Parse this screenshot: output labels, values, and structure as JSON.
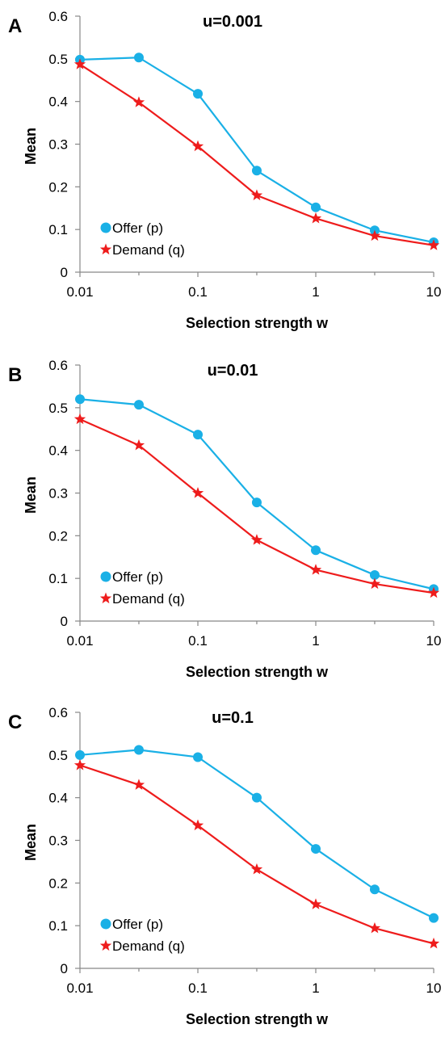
{
  "chart_data": [
    {
      "type": "line",
      "panel_letter": "A",
      "title": "u=0.001",
      "xlabel": "Selection strength w",
      "ylabel": "Mean",
      "x_scale": "log",
      "x": [
        0.01,
        0.0316,
        0.1,
        0.316,
        1,
        3.16,
        10
      ],
      "xticks": [
        "0.01",
        "0.1",
        "1",
        "10"
      ],
      "yticks": [
        "0",
        "0.1",
        "0.2",
        "0.3",
        "0.4",
        "0.5",
        "0.6"
      ],
      "ylim": [
        0,
        0.6
      ],
      "legend_position": "bottom-left",
      "series": [
        {
          "name": "Offer (p)",
          "color": "#1ab0e6",
          "marker": "circle",
          "values": [
            0.498,
            0.503,
            0.418,
            0.238,
            0.152,
            0.098,
            0.07
          ]
        },
        {
          "name": "Demand (q)",
          "color": "#ee1c1c",
          "marker": "star",
          "values": [
            0.487,
            0.398,
            0.295,
            0.18,
            0.126,
            0.085,
            0.063
          ]
        }
      ]
    },
    {
      "type": "line",
      "panel_letter": "B",
      "title": "u=0.01",
      "xlabel": "Selection strength w",
      "ylabel": "Mean",
      "x_scale": "log",
      "x": [
        0.01,
        0.0316,
        0.1,
        0.316,
        1,
        3.16,
        10
      ],
      "xticks": [
        "0.01",
        "0.1",
        "1",
        "10"
      ],
      "yticks": [
        "0",
        "0.1",
        "0.2",
        "0.3",
        "0.4",
        "0.5",
        "0.6"
      ],
      "ylim": [
        0,
        0.6
      ],
      "legend_position": "bottom-left",
      "series": [
        {
          "name": "Offer (p)",
          "color": "#1ab0e6",
          "marker": "circle",
          "values": [
            0.52,
            0.507,
            0.437,
            0.278,
            0.166,
            0.108,
            0.075
          ]
        },
        {
          "name": "Demand (q)",
          "color": "#ee1c1c",
          "marker": "star",
          "values": [
            0.473,
            0.412,
            0.3,
            0.19,
            0.12,
            0.087,
            0.066
          ]
        }
      ]
    },
    {
      "type": "line",
      "panel_letter": "C",
      "title": "u=0.1",
      "xlabel": "Selection strength w",
      "ylabel": "Mean",
      "x_scale": "log",
      "x": [
        0.01,
        0.0316,
        0.1,
        0.316,
        1,
        3.16,
        10
      ],
      "xticks": [
        "0.01",
        "0.1",
        "1",
        "10"
      ],
      "yticks": [
        "0",
        "0.1",
        "0.2",
        "0.3",
        "0.4",
        "0.5",
        "0.6"
      ],
      "ylim": [
        0,
        0.6
      ],
      "legend_position": "bottom-left",
      "series": [
        {
          "name": "Offer (p)",
          "color": "#1ab0e6",
          "marker": "circle",
          "values": [
            0.5,
            0.512,
            0.495,
            0.4,
            0.28,
            0.185,
            0.118
          ]
        },
        {
          "name": "Demand (q)",
          "color": "#ee1c1c",
          "marker": "star",
          "values": [
            0.476,
            0.43,
            0.335,
            0.232,
            0.15,
            0.094,
            0.058
          ]
        }
      ]
    }
  ]
}
